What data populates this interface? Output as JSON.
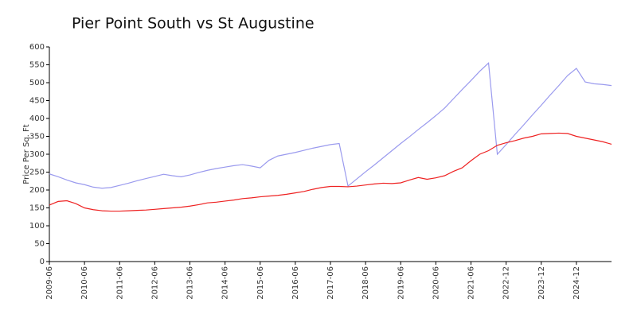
{
  "chart_data": {
    "type": "line",
    "title": "Pier Point South vs St Augustine",
    "y_label": "Price Per Sq. Ft",
    "categories": [
      "2009-06",
      null,
      null,
      null,
      "2010-06",
      null,
      null,
      null,
      "2011-06",
      null,
      null,
      null,
      "2012-06",
      null,
      null,
      null,
      "2013-06",
      null,
      null,
      null,
      "2014-06",
      null,
      null,
      null,
      "2015-06",
      null,
      null,
      null,
      "2016-06",
      null,
      null,
      null,
      "2017-06",
      null,
      null,
      null,
      "2018-06",
      null,
      null,
      null,
      "2019-06",
      null,
      null,
      null,
      "2020-06",
      null,
      null,
      null,
      "2021-06",
      null,
      null,
      null,
      "2022-12",
      null,
      null,
      null,
      "2023-12",
      null,
      null,
      null,
      "2024-12",
      null,
      null,
      null,
      null
    ],
    "series": [
      {
        "color": "#9a9aee",
        "values": [
          245,
          237,
          228,
          220,
          215,
          208,
          205,
          207,
          213,
          219,
          226,
          232,
          238,
          244,
          240,
          237,
          242,
          249,
          255,
          260,
          264,
          268,
          271,
          267,
          262,
          283,
          295,
          300,
          305,
          311,
          317,
          322,
          327,
          330,
          211,
          231,
          251,
          270,
          290,
          310,
          330,
          349,
          369,
          388,
          408,
          429,
          455,
          481,
          506,
          532,
          555,
          300,
          327,
          355,
          382,
          410,
          437,
          465,
          492,
          520,
          540,
          502,
          497,
          495,
          492
        ]
      },
      {
        "color": "#ee2222",
        "values": [
          158,
          168,
          170,
          162,
          150,
          145,
          142,
          141,
          141,
          142,
          143,
          144,
          146,
          148,
          150,
          152,
          155,
          159,
          164,
          166,
          169,
          172,
          176,
          178,
          181,
          183,
          185,
          188,
          192,
          196,
          202,
          207,
          210,
          210,
          209,
          211,
          214,
          217,
          219,
          218,
          220,
          228,
          235,
          230,
          234,
          240,
          252,
          262,
          282,
          300,
          310,
          325,
          332,
          338,
          345,
          350,
          357,
          358,
          359,
          358,
          350,
          345,
          340,
          335,
          328
        ]
      }
    ],
    "ylim": [
      0,
      600
    ],
    "yticks": [
      0,
      50,
      100,
      150,
      200,
      250,
      300,
      350,
      400,
      450,
      500,
      550,
      600
    ]
  }
}
